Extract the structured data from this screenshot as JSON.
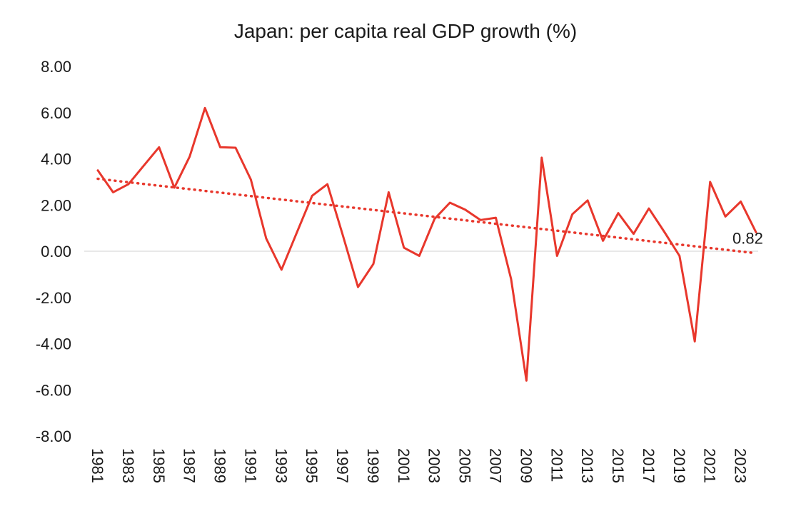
{
  "chart_data": {
    "type": "line",
    "title": "Japan: per capita real GDP growth (%)",
    "xlabel": "",
    "ylabel": "",
    "ylim": [
      -8,
      8
    ],
    "yticks": [
      8,
      6,
      4,
      2,
      0,
      -2,
      -4,
      -6,
      -8
    ],
    "ytick_labels": [
      "8.00",
      "6.00",
      "4.00",
      "2.00",
      "0.00",
      "-2.00",
      "-4.00",
      "-6.00",
      "-8.00"
    ],
    "xtick_labels": [
      "1981",
      "1983",
      "1985",
      "1987",
      "1989",
      "1991",
      "1993",
      "1995",
      "1997",
      "1999",
      "2001",
      "2003",
      "2005",
      "2007",
      "2009",
      "2011",
      "2013",
      "2015",
      "2017",
      "2019",
      "2021",
      "2023"
    ],
    "x": [
      1981,
      1982,
      1983,
      1984,
      1985,
      1986,
      1987,
      1988,
      1989,
      1990,
      1991,
      1992,
      1993,
      1994,
      1995,
      1996,
      1997,
      1998,
      1999,
      2000,
      2001,
      2002,
      2003,
      2004,
      2005,
      2006,
      2007,
      2008,
      2009,
      2010,
      2011,
      2012,
      2013,
      2014,
      2015,
      2016,
      2017,
      2018,
      2019,
      2020,
      2021,
      2022,
      2023,
      2024
    ],
    "series": [
      {
        "color": "#e8372c",
        "values": [
          3.5,
          2.55,
          2.9,
          3.7,
          4.5,
          2.75,
          4.1,
          6.2,
          4.5,
          4.48,
          3.1,
          0.55,
          -0.8,
          0.8,
          2.4,
          2.9,
          0.7,
          -1.55,
          -0.55,
          2.55,
          0.15,
          -0.2,
          1.4,
          2.1,
          1.8,
          1.35,
          1.45,
          -1.2,
          -5.6,
          4.05,
          -0.2,
          1.6,
          2.2,
          0.45,
          1.65,
          0.75,
          1.85,
          0.85,
          -0.2,
          -3.9,
          3.0,
          1.5,
          2.15,
          0.82
        ]
      }
    ],
    "trendline": {
      "type": "linear",
      "style": "dotted",
      "color": "#e8372c"
    },
    "data_labels": [
      {
        "x": 2024,
        "text": "0.82"
      }
    ],
    "grid": false,
    "zero_line": true
  }
}
